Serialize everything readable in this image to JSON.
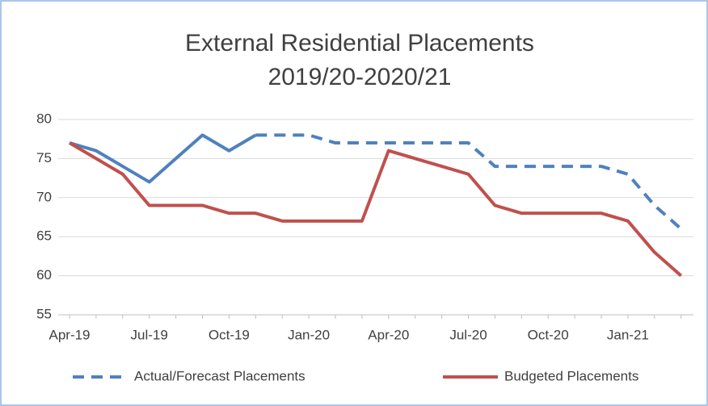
{
  "chart_data": {
    "type": "line",
    "title": [
      "External Residential Placements",
      "2019/20-2020/21"
    ],
    "categories": [
      "Apr-19",
      null,
      null,
      "Jul-19",
      null,
      null,
      "Oct-19",
      null,
      null,
      "Jan-20",
      null,
      null,
      "Apr-20",
      null,
      null,
      "Jul-20",
      null,
      null,
      "Oct-20",
      null,
      null,
      "Jan-21",
      null,
      null
    ],
    "series": [
      {
        "name": "Actual/Forecast Placements",
        "color": "#4f81bd",
        "dash_from": 7,
        "values": [
          77,
          76,
          74,
          72,
          75,
          78,
          76,
          78,
          78,
          78,
          77,
          77,
          77,
          77,
          77,
          77,
          74,
          74,
          74,
          74,
          74,
          73,
          69,
          66
        ]
      },
      {
        "name": "Budgeted Placements",
        "color": "#c0504d",
        "values": [
          77,
          75,
          73,
          69,
          69,
          69,
          68,
          68,
          67,
          67,
          67,
          67,
          76,
          75,
          74,
          73,
          69,
          68,
          68,
          68,
          68,
          67,
          63,
          60
        ]
      }
    ],
    "ylim": [
      55,
      80
    ],
    "yticks": [
      55,
      60,
      65,
      70,
      75,
      80
    ],
    "grid": true,
    "legend": "bottom"
  }
}
